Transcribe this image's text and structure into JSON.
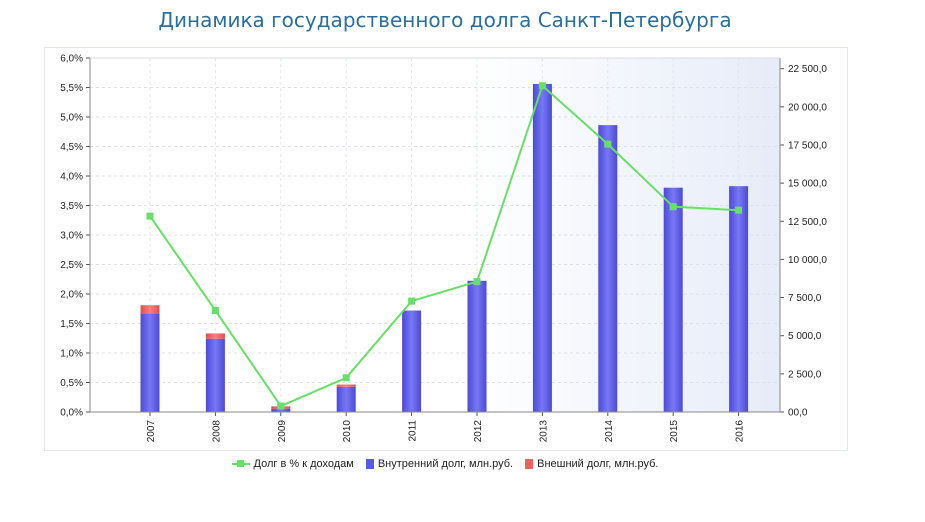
{
  "title": "Динамика государственного долга Санкт-Петербурга",
  "colors": {
    "line": "#66e066",
    "domestic": "#5a5ae6",
    "foreign": "#ee6060",
    "title": "#2b6d9e"
  },
  "chart_data": {
    "type": "bar",
    "title": "Динамика государственного долга Санкт-Петербурга",
    "categories": [
      "2007",
      "2008",
      "2009",
      "2010",
      "2011",
      "2012",
      "2013",
      "2014",
      "2015",
      "2016"
    ],
    "series": [
      {
        "name": "Внутренний долг, млн.руб.",
        "type": "bar",
        "axis": "right",
        "stack": "debt",
        "values": [
          6450,
          4800,
          220,
          1650,
          6650,
          8600,
          21500,
          18800,
          14700,
          14800
        ]
      },
      {
        "name": "Внешний долг, млн.руб.",
        "type": "bar",
        "axis": "right",
        "stack": "debt",
        "values": [
          550,
          350,
          150,
          150,
          0,
          0,
          0,
          0,
          0,
          0
        ]
      },
      {
        "name": "Долг в % к доходам",
        "type": "line",
        "axis": "left",
        "values": [
          3.32,
          1.72,
          0.1,
          0.58,
          1.88,
          2.21,
          5.53,
          4.54,
          3.48,
          3.42
        ]
      }
    ],
    "y_left": {
      "ylim": [
        0,
        6
      ],
      "ticks": [
        "0,0%",
        "0,5%",
        "1,0%",
        "1,5%",
        "2,0%",
        "2,5%",
        "3,0%",
        "3,5%",
        "4,0%",
        "4,5%",
        "5,0%",
        "5,5%",
        "6,0%"
      ]
    },
    "y_right": {
      "ylim": [
        0,
        23200
      ],
      "tick_values": [
        0,
        2500,
        5000,
        7500,
        10000,
        12500,
        15000,
        17500,
        20000,
        22500
      ],
      "ticks": [
        "00,0",
        "2 500,0",
        "5 000,0",
        "7 500,0",
        "10 000,0",
        "12 500,0",
        "15 000,0",
        "17 500,0",
        "20 000,0",
        "22 500,0"
      ]
    },
    "grid": true,
    "legend_position": "bottom"
  },
  "legend": [
    {
      "label": "Долг в % к доходам",
      "kind": "line"
    },
    {
      "label": "Внутренний долг, млн.руб.",
      "kind": "domestic"
    },
    {
      "label": "Внешний долг, млн.руб.",
      "kind": "foreign"
    }
  ]
}
